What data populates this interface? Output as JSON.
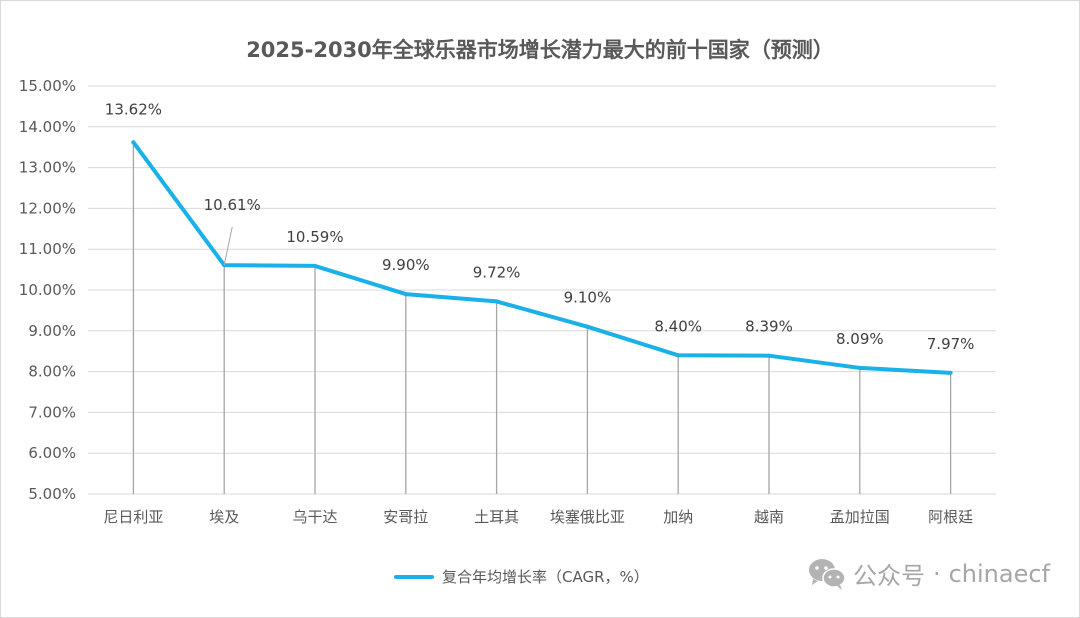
{
  "chart_data": {
    "type": "line",
    "title": "2025-2030年全球乐器市场增长潜力最大的前十国家（预测）",
    "categories": [
      "尼日利亚",
      "埃及",
      "乌干达",
      "安哥拉",
      "土耳其",
      "埃塞俄比亚",
      "加纳",
      "越南",
      "孟加拉国",
      "阿根廷"
    ],
    "series": [
      {
        "name": "复合年均增长率（CAGR，%）",
        "values": [
          13.62,
          10.61,
          10.59,
          9.9,
          9.72,
          9.1,
          8.4,
          8.39,
          8.09,
          7.97
        ],
        "labels": [
          "13.62%",
          "10.61%",
          "10.59%",
          "9.90%",
          "9.72%",
          "9.10%",
          "8.40%",
          "8.39%",
          "8.09%",
          "7.97%"
        ],
        "color": "#1ab0e8"
      }
    ],
    "ylim": [
      5,
      15
    ],
    "yticks": [
      "5.00%",
      "6.00%",
      "7.00%",
      "8.00%",
      "9.00%",
      "10.00%",
      "11.00%",
      "12.00%",
      "13.00%",
      "14.00%",
      "15.00%"
    ],
    "xlabel": "",
    "ylabel": "",
    "grid": true,
    "legend": "bottom-center"
  },
  "watermark": {
    "icon": "wechat-icon",
    "brand": "公众号",
    "separator": "·",
    "account": "chinaecf"
  },
  "colors": {
    "line": "#1ab0e8",
    "grid": "#d9d9d9",
    "drop_line": "#a6a6a6",
    "text": "#595959"
  }
}
